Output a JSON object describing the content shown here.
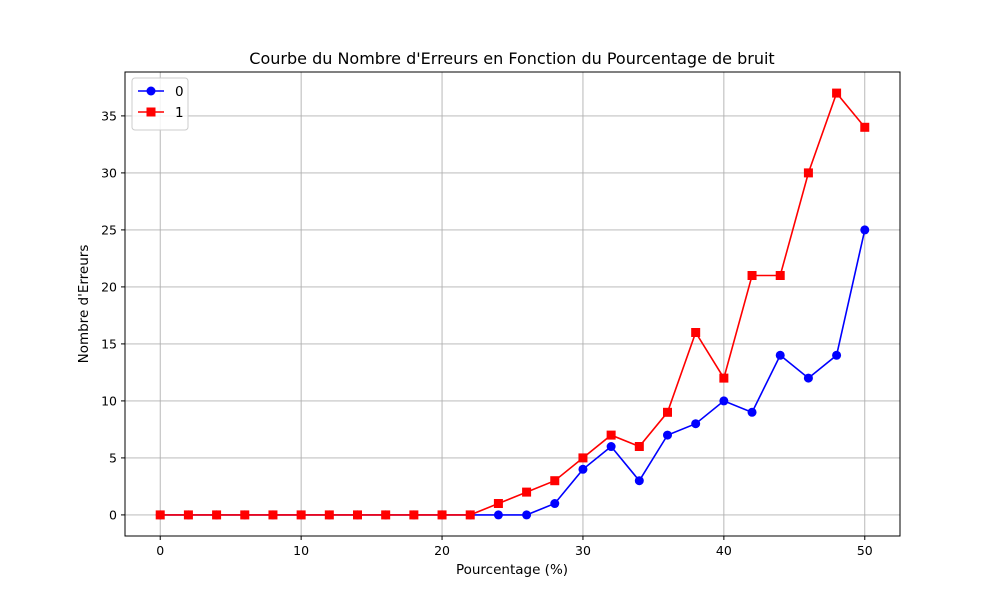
{
  "chart_data": {
    "type": "line",
    "title": "Courbe du Nombre d'Erreurs en Fonction du Pourcentage de bruit",
    "xlabel": "Pourcentage (%)",
    "ylabel": "Nombre d'Erreurs",
    "xlim": [
      -2.5,
      52.5
    ],
    "ylim": [
      -1.85,
      38.85
    ],
    "xticks": [
      0,
      10,
      20,
      30,
      40,
      50
    ],
    "yticks": [
      0,
      5,
      10,
      15,
      20,
      25,
      30,
      35
    ],
    "grid": true,
    "legend_position": "top-left",
    "x": [
      0,
      2,
      4,
      6,
      8,
      10,
      12,
      14,
      16,
      18,
      20,
      22,
      24,
      26,
      28,
      30,
      32,
      34,
      36,
      38,
      40,
      42,
      44,
      46,
      48,
      50
    ],
    "series": [
      {
        "name": "0",
        "color": "#0000ff",
        "marker": "circle",
        "values": [
          0,
          0,
          0,
          0,
          0,
          0,
          0,
          0,
          0,
          0,
          0,
          0,
          0,
          0,
          1,
          4,
          6,
          3,
          7,
          8,
          10,
          9,
          14,
          12,
          14,
          25
        ]
      },
      {
        "name": "1",
        "color": "#ff0000",
        "marker": "square",
        "values": [
          0,
          0,
          0,
          0,
          0,
          0,
          0,
          0,
          0,
          0,
          0,
          0,
          1,
          2,
          3,
          5,
          7,
          6,
          9,
          16,
          12,
          21,
          21,
          30,
          37,
          34
        ]
      }
    ]
  }
}
